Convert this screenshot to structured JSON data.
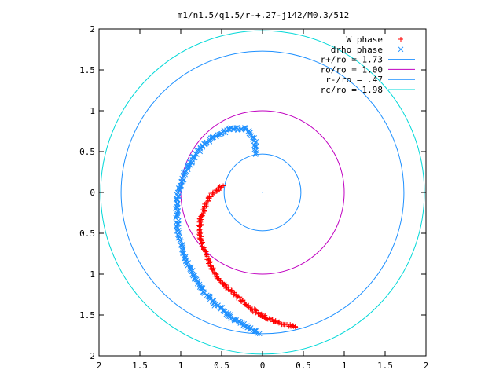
{
  "chart_data": {
    "type": "scatter",
    "title": "m1/n1.5/q1.5/r-+.27-j142/M0.3/512",
    "xlabel": "",
    "ylabel": "",
    "xlim": [
      -2,
      2
    ],
    "ylim": [
      -2,
      2
    ],
    "xticks": [
      "2",
      "1.5",
      "1",
      "0.5",
      "0",
      "0.5",
      "1",
      "1.5",
      "2"
    ],
    "yticks": [
      "2",
      "1.5",
      "1",
      "0.5",
      "0",
      "0.5",
      "1",
      "1.5",
      "2"
    ],
    "grid": false,
    "legend_position": "top-right",
    "series": [
      {
        "name": "W phase",
        "marker": "+",
        "color": "#ff0000",
        "polyline": [
          [
            -0.48,
            0.08
          ],
          [
            -0.6,
            0.0
          ],
          [
            -0.7,
            -0.15
          ],
          [
            -0.76,
            -0.35
          ],
          [
            -0.76,
            -0.55
          ],
          [
            -0.68,
            -0.8
          ],
          [
            -0.58,
            -1.0
          ],
          [
            -0.45,
            -1.15
          ],
          [
            -0.28,
            -1.3
          ],
          [
            -0.1,
            -1.45
          ],
          [
            0.1,
            -1.56
          ],
          [
            0.25,
            -1.61
          ],
          [
            0.42,
            -1.65
          ]
        ]
      },
      {
        "name": "drho phase",
        "marker": "x",
        "color": "#1e90ff",
        "polyline": [
          [
            -0.08,
            0.48
          ],
          [
            -0.09,
            0.65
          ],
          [
            -0.2,
            0.78
          ],
          [
            -0.4,
            0.78
          ],
          [
            -0.6,
            0.68
          ],
          [
            -0.8,
            0.5
          ],
          [
            -0.97,
            0.2
          ],
          [
            -1.05,
            -0.1
          ],
          [
            -1.04,
            -0.45
          ],
          [
            -0.95,
            -0.8
          ],
          [
            -0.8,
            -1.1
          ],
          [
            -0.6,
            -1.35
          ],
          [
            -0.35,
            -1.55
          ],
          [
            -0.15,
            -1.67
          ],
          [
            -0.05,
            -1.72
          ]
        ]
      },
      {
        "name": "r+/ro = 1.73",
        "type": "circle",
        "radius": 1.73,
        "color": "#1e90ff"
      },
      {
        "name": "ro/ro = 1.00",
        "type": "circle",
        "radius": 1.0,
        "color": "#c000c0"
      },
      {
        "name": "r-/ro = .47",
        "type": "circle",
        "radius": 0.47,
        "color": "#1e90ff"
      },
      {
        "name": "rc/ro = 1.98",
        "type": "circle",
        "radius": 1.98,
        "color": "#00d8d8"
      }
    ]
  }
}
